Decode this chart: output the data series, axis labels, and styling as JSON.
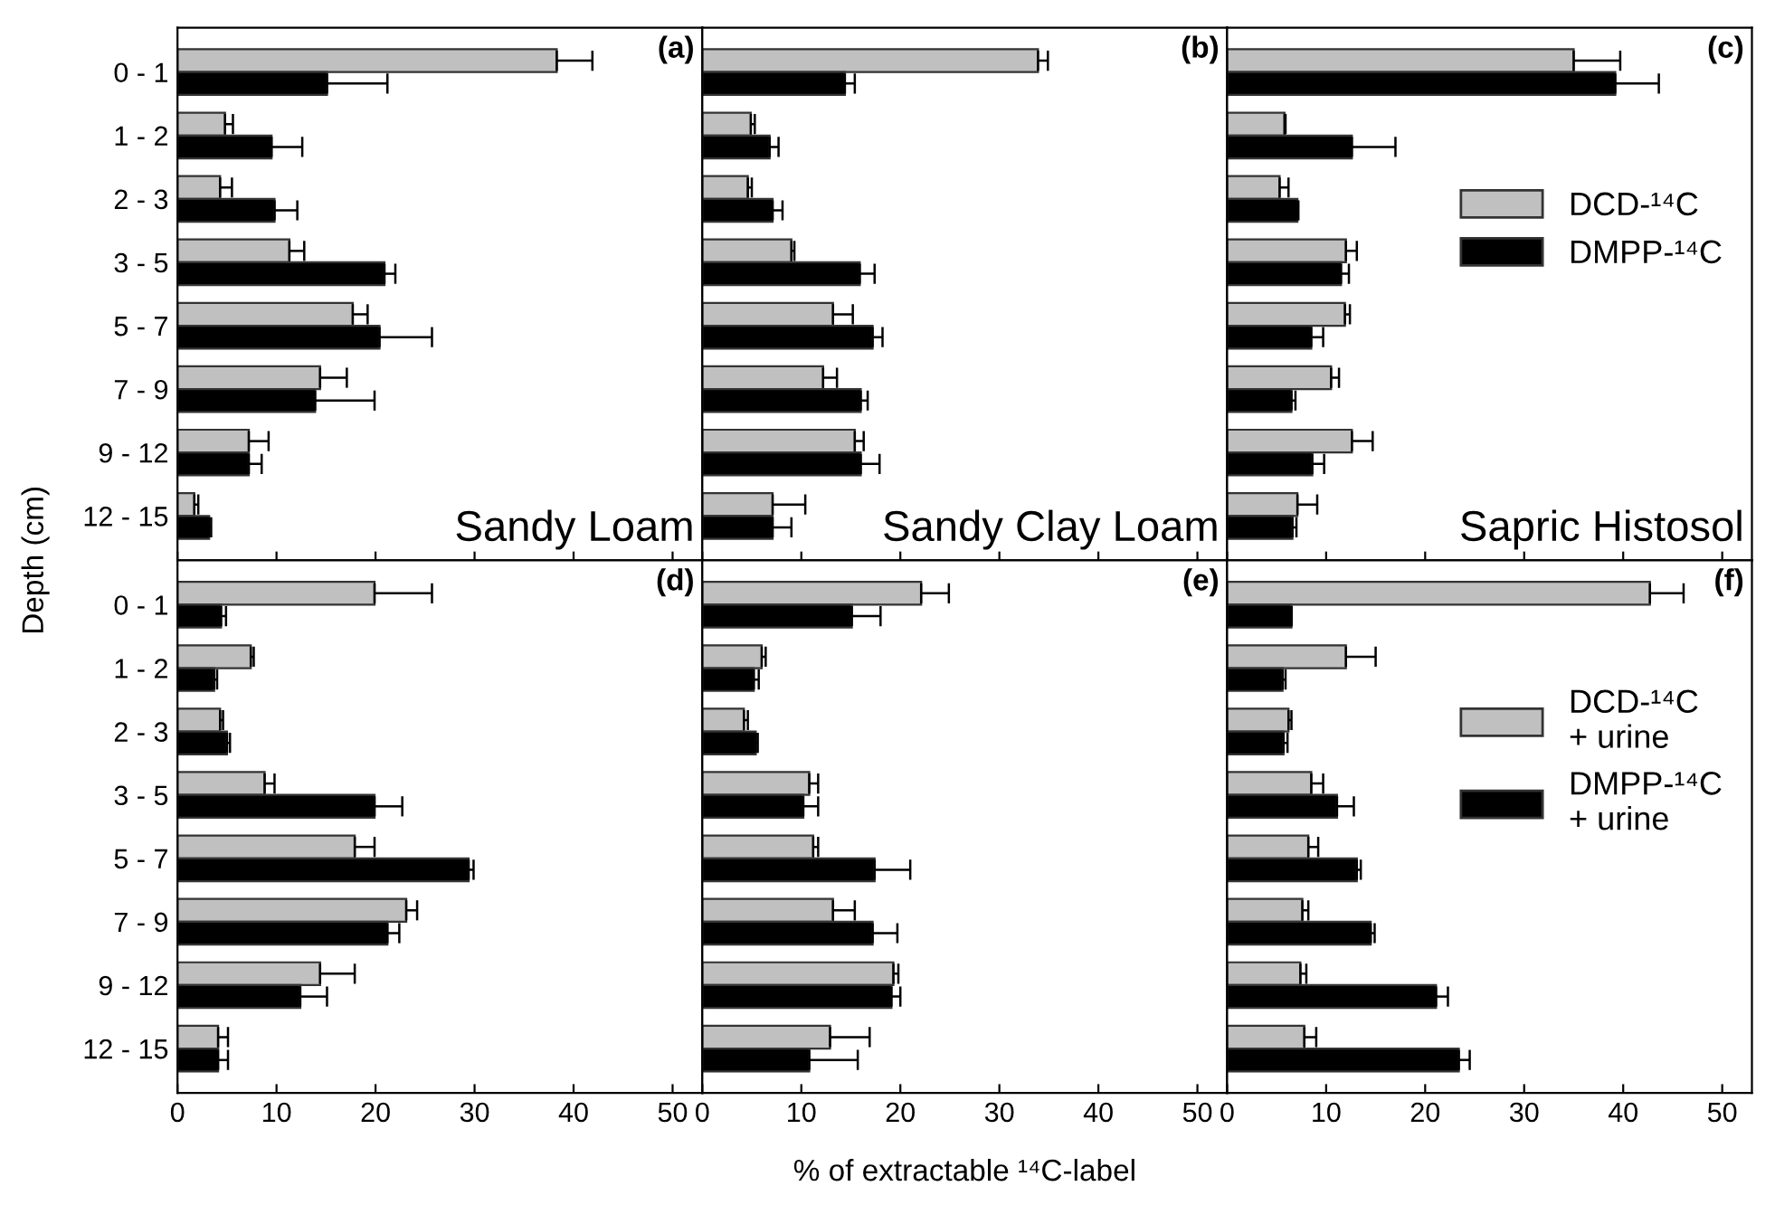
{
  "chart_data": [
    {
      "type": "bar",
      "orientation": "horizontal",
      "ylabel": "Depth (cm)",
      "annotations": [
        "(a)",
        "Sandy Loam"
      ],
      "categories": [
        "0 - 1",
        "1 - 2",
        "2 - 3",
        "3 - 5",
        "5 - 7",
        "7 - 9",
        "9 - 12",
        "12 - 15"
      ],
      "xlim": [
        0,
        53
      ],
      "xticks": [
        0,
        10,
        20,
        30,
        40,
        50
      ],
      "tick_labels": "y",
      "grid": false,
      "legend": false,
      "series": [
        {
          "color": "#c0c0c0",
          "values": [
            38.3,
            4.8,
            4.3,
            11.3,
            17.7,
            14.4,
            7.2,
            1.7
          ],
          "errors": [
            [
              38.3,
              41.9
            ],
            [
              4.8,
              5.6
            ],
            [
              4.3,
              5.5
            ],
            [
              11.3,
              12.8
            ],
            [
              17.7,
              19.2
            ],
            [
              14.4,
              17.1
            ],
            [
              7.2,
              9.2
            ],
            [
              1.7,
              2.1
            ]
          ]
        },
        {
          "color": "#000000",
          "values": [
            15.1,
            9.5,
            9.8,
            20.9,
            20.4,
            13.9,
            7.2,
            3.2
          ],
          "errors": [
            [
              15.1,
              21.2
            ],
            [
              9.5,
              12.6
            ],
            [
              9.8,
              12.1
            ],
            [
              20.9,
              22.0
            ],
            [
              20.4,
              25.7
            ],
            [
              13.9,
              19.9
            ],
            [
              7.2,
              8.5
            ],
            [
              3.2,
              3.4
            ]
          ]
        }
      ]
    },
    {
      "type": "bar",
      "orientation": "horizontal",
      "annotations": [
        "(b)",
        "Sandy Clay Loam"
      ],
      "categories": [
        null,
        null,
        null,
        null,
        null,
        null,
        null,
        null
      ],
      "xlim": [
        0,
        53
      ],
      "xticks": [
        0,
        10,
        20,
        30,
        40,
        50
      ],
      "tick_labels": false,
      "grid": false,
      "legend": false,
      "series": [
        {
          "color": "#c0c0c0",
          "values": [
            33.9,
            4.9,
            4.6,
            9.0,
            13.2,
            12.2,
            15.4,
            7.1
          ],
          "errors": [
            [
              33.9,
              34.9
            ],
            [
              4.9,
              5.3
            ],
            [
              4.6,
              5.0
            ],
            [
              9.0,
              9.3
            ],
            [
              13.2,
              15.2
            ],
            [
              12.2,
              13.6
            ],
            [
              15.4,
              16.3
            ],
            [
              7.1,
              10.4
            ]
          ]
        },
        {
          "color": "#000000",
          "values": [
            14.4,
            6.8,
            7.1,
            15.9,
            17.2,
            16.0,
            16.0,
            7.1
          ],
          "errors": [
            [
              14.4,
              15.4
            ],
            [
              6.8,
              7.7
            ],
            [
              7.1,
              8.1
            ],
            [
              15.9,
              17.4
            ],
            [
              17.2,
              18.2
            ],
            [
              16.0,
              16.7
            ],
            [
              16.0,
              17.9
            ],
            [
              7.1,
              9.0
            ]
          ]
        }
      ]
    },
    {
      "type": "bar",
      "orientation": "horizontal",
      "annotations": [
        "(c)",
        "Sapric Histosol"
      ],
      "categories": [
        null,
        null,
        null,
        null,
        null,
        null,
        null,
        null
      ],
      "xlim": [
        0,
        53
      ],
      "xticks": [
        0,
        10,
        20,
        30,
        40,
        50
      ],
      "tick_labels": false,
      "grid": false,
      "legend": "right",
      "series": [
        {
          "name": "DCD-¹⁴C",
          "color": "#c0c0c0",
          "values": [
            35.0,
            5.8,
            5.3,
            12.0,
            11.9,
            10.5,
            12.6,
            7.1
          ],
          "errors": [
            [
              35.0,
              39.7
            ],
            [
              5.8,
              5.9
            ],
            [
              5.3,
              6.2
            ],
            [
              12.0,
              13.1
            ],
            [
              11.9,
              12.4
            ],
            [
              10.5,
              11.3
            ],
            [
              12.6,
              14.7
            ],
            [
              7.1,
              9.1
            ]
          ]
        },
        {
          "name": "DMPP-¹⁴C",
          "color": "#000000",
          "values": [
            39.2,
            12.6,
            7.1,
            11.5,
            8.5,
            6.5,
            8.6,
            6.6
          ],
          "errors": [
            [
              39.2,
              43.6
            ],
            [
              12.6,
              17.0
            ],
            [
              7.1,
              7.2
            ],
            [
              11.5,
              12.3
            ],
            [
              8.5,
              9.7
            ],
            [
              6.5,
              6.9
            ],
            [
              8.6,
              9.8
            ],
            [
              6.6,
              7.0
            ]
          ]
        }
      ]
    },
    {
      "type": "bar",
      "orientation": "horizontal",
      "annotations": [
        "(d)"
      ],
      "categories": [
        "0 - 1",
        "1 - 2",
        "2 - 3",
        "3 - 5",
        "5 - 7",
        "7 - 9",
        "9 - 12",
        "12 - 15"
      ],
      "xlim": [
        0,
        53
      ],
      "xticks": [
        0,
        10,
        20,
        30,
        40,
        50
      ],
      "grid": false,
      "legend": false,
      "series": [
        {
          "color": "#c0c0c0",
          "values": [
            19.9,
            7.4,
            4.3,
            8.8,
            17.9,
            23.1,
            14.4,
            4.1
          ],
          "errors": [
            [
              19.9,
              25.7
            ],
            [
              7.4,
              7.7
            ],
            [
              4.3,
              4.6
            ],
            [
              8.8,
              9.8
            ],
            [
              17.9,
              19.9
            ],
            [
              23.1,
              24.2
            ],
            [
              14.4,
              17.9
            ],
            [
              4.1,
              5.1
            ]
          ]
        },
        {
          "color": "#000000",
          "values": [
            4.4,
            3.7,
            5.0,
            19.9,
            29.4,
            21.2,
            12.4,
            4.1
          ],
          "errors": [
            [
              4.4,
              4.9
            ],
            [
              3.7,
              4.0
            ],
            [
              5.0,
              5.3
            ],
            [
              19.9,
              22.7
            ],
            [
              29.4,
              29.9
            ],
            [
              21.2,
              22.4
            ],
            [
              12.4,
              15.1
            ],
            [
              4.1,
              5.1
            ]
          ]
        }
      ]
    },
    {
      "type": "bar",
      "orientation": "horizontal",
      "xlabel": "% of extractable ¹⁴C-label",
      "annotations": [
        "(e)"
      ],
      "categories": [
        null,
        null,
        null,
        null,
        null,
        null,
        null,
        null
      ],
      "xlim": [
        0,
        53
      ],
      "xticks": [
        0,
        10,
        20,
        30,
        40,
        50
      ],
      "tick_labels": "x",
      "grid": false,
      "legend": false,
      "series": [
        {
          "color": "#c0c0c0",
          "values": [
            22.1,
            6.0,
            4.2,
            10.8,
            11.2,
            13.2,
            19.3,
            12.9
          ],
          "errors": [
            [
              22.1,
              24.9
            ],
            [
              6.0,
              6.4
            ],
            [
              4.2,
              4.6
            ],
            [
              10.8,
              11.7
            ],
            [
              11.2,
              11.7
            ],
            [
              13.2,
              15.4
            ],
            [
              19.3,
              19.8
            ],
            [
              12.9,
              16.9
            ]
          ]
        },
        {
          "color": "#000000",
          "values": [
            15.1,
            5.2,
            5.4,
            10.2,
            17.4,
            17.2,
            19.1,
            10.8
          ],
          "errors": [
            [
              15.1,
              18.0
            ],
            [
              5.2,
              5.7
            ],
            [
              5.4,
              5.6
            ],
            [
              10.2,
              11.7
            ],
            [
              17.4,
              21.0
            ],
            [
              17.2,
              19.7
            ],
            [
              19.1,
              20.0
            ],
            [
              10.8,
              15.7
            ]
          ]
        }
      ]
    },
    {
      "type": "bar",
      "orientation": "horizontal",
      "annotations": [
        "(f)"
      ],
      "categories": [
        null,
        null,
        null,
        null,
        null,
        null,
        null,
        null
      ],
      "xlim": [
        0,
        53
      ],
      "xticks": [
        0,
        10,
        20,
        30,
        40,
        50
      ],
      "tick_labels": "x",
      "grid": false,
      "legend": "right",
      "series": [
        {
          "name": "DCD-¹⁴C\n+ urine",
          "color": "#c0c0c0",
          "values": [
            42.7,
            12.0,
            6.2,
            8.5,
            8.2,
            7.6,
            7.4,
            7.8
          ],
          "errors": [
            [
              42.7,
              46.1
            ],
            [
              12.0,
              15.0
            ],
            [
              6.2,
              6.5
            ],
            [
              8.5,
              9.7
            ],
            [
              8.2,
              9.2
            ],
            [
              7.6,
              8.2
            ],
            [
              7.4,
              8.0
            ],
            [
              7.8,
              9.0
            ]
          ]
        },
        {
          "name": "DMPP-¹⁴C\n+ urine",
          "color": "#000000",
          "values": [
            6.5,
            5.6,
            5.7,
            11.1,
            13.1,
            14.5,
            21.1,
            23.4
          ],
          "errors": [
            [
              6.5,
              6.5
            ],
            [
              5.6,
              5.9
            ],
            [
              5.7,
              6.1
            ],
            [
              11.1,
              12.8
            ],
            [
              13.1,
              13.5
            ],
            [
              14.5,
              14.9
            ],
            [
              21.1,
              22.3
            ],
            [
              23.4,
              24.5
            ]
          ]
        }
      ]
    }
  ]
}
